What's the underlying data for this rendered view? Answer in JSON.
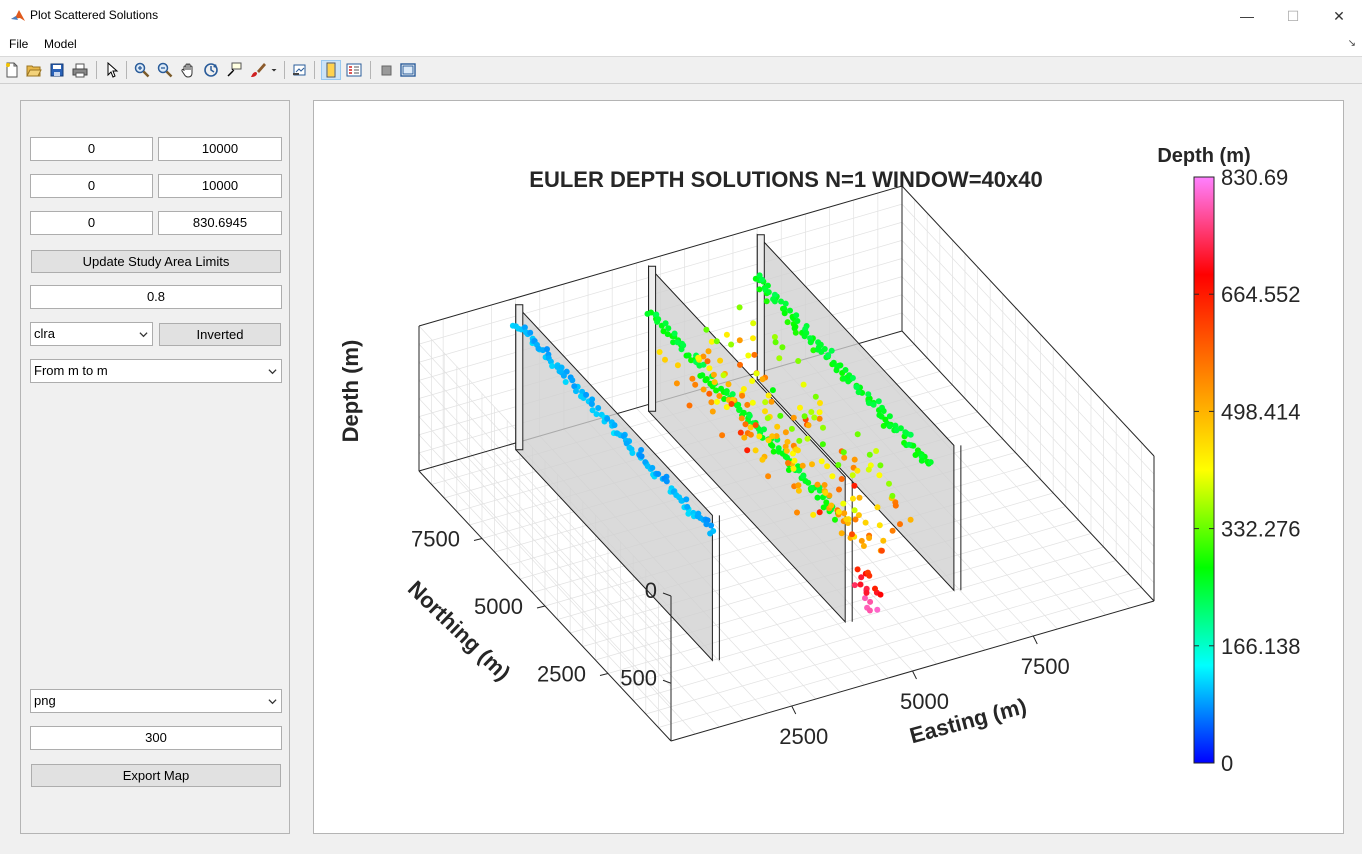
{
  "window": {
    "title": "Plot Scattered Solutions",
    "minimize": "—",
    "maximize": "☐",
    "close": "✕"
  },
  "menu": {
    "file": "File",
    "model": "Model",
    "corner": "↘"
  },
  "toolbar": {
    "icons": [
      "new-file-icon",
      "open-folder-icon",
      "save-icon",
      "print-icon",
      "pointer-icon",
      "zoom-in-icon",
      "zoom-out-icon",
      "pan-icon",
      "rotate-3d-icon",
      "data-cursor-icon",
      "brush-icon",
      "link-plot-icon",
      "colorbar-icon",
      "legend-icon",
      "hide-plot-tools-icon",
      "show-plot-tools-icon"
    ]
  },
  "controls": {
    "x_min": "0",
    "x_max": "10000",
    "y_min": "0",
    "y_max": "10000",
    "z_min": "0",
    "z_max": "830.6945",
    "update_button": "Update Study Area Limits",
    "alpha": "0.8",
    "colormap": "clra",
    "inverted_button": "Inverted",
    "units": "From m to m",
    "format": "png",
    "dpi": "300",
    "export_button": "Export Map"
  },
  "chart_data": {
    "type": "scatter",
    "title": "EULER DEPTH SOLUTIONS N=1 WINDOW=40x40",
    "xlabel": "Easting (m)",
    "ylabel": "Northing (m)",
    "zlabel": "Depth (m)",
    "xlim": [
      0,
      10000
    ],
    "ylim": [
      0,
      10000
    ],
    "zlim": [
      0,
      830.6945
    ],
    "z_direction": "reverse",
    "x_ticks": [
      "2500",
      "5000",
      "7500"
    ],
    "y_ticks": [
      "2500",
      "5000",
      "7500"
    ],
    "z_ticks": [
      "0",
      "500"
    ],
    "grid": true,
    "colorbar": {
      "title": "Depth (m)",
      "ticks": [
        "0",
        "166.138",
        "332.276",
        "498.414",
        "664.552",
        "830.69"
      ],
      "colors": [
        "#0000ff",
        "#00ffff",
        "#00ff00",
        "#ffff00",
        "#ff8000",
        "#ff0000",
        "#ff80ff"
      ]
    },
    "planes": [
      {
        "x": 1900,
        "y_from": 2000,
        "y_to": 9800,
        "z_from": 0,
        "z_to": 830
      },
      {
        "x": 4650,
        "y_from": 2000,
        "y_to": 9800,
        "z_from": 0,
        "z_to": 830
      },
      {
        "x": 6900,
        "y_from": 2000,
        "y_to": 9800,
        "z_from": 0,
        "z_to": 830
      }
    ],
    "clusters": [
      {
        "x": 1900,
        "y_from": 9800,
        "y_to": 2000,
        "depth_from": 80,
        "depth_to": 120,
        "n": 110,
        "jx": 60,
        "jz": 10
      },
      {
        "x": 4650,
        "y_from": 9800,
        "y_to": 2300,
        "depth_from": 240,
        "depth_to": 280,
        "n": 110,
        "jx": 80,
        "jz": 20
      },
      {
        "x": 6900,
        "y_from": 9900,
        "y_to": 3000,
        "depth_from": 240,
        "depth_to": 290,
        "n": 120,
        "jx": 90,
        "jz": 20
      },
      {
        "x": 5200,
        "y_from": 9500,
        "y_to": 2200,
        "depth_from": 420,
        "depth_to": 560,
        "n": 80,
        "jx": 500,
        "jz": 40
      },
      {
        "x": 5900,
        "y_from": 9600,
        "y_to": 2600,
        "depth_from": 300,
        "depth_to": 640,
        "n": 110,
        "jx": 700,
        "jz": 80
      },
      {
        "x": 5200,
        "y_from": 2600,
        "y_to": 1800,
        "depth_from": 600,
        "depth_to": 820,
        "n": 18,
        "jx": 120,
        "jz": 30
      }
    ]
  }
}
